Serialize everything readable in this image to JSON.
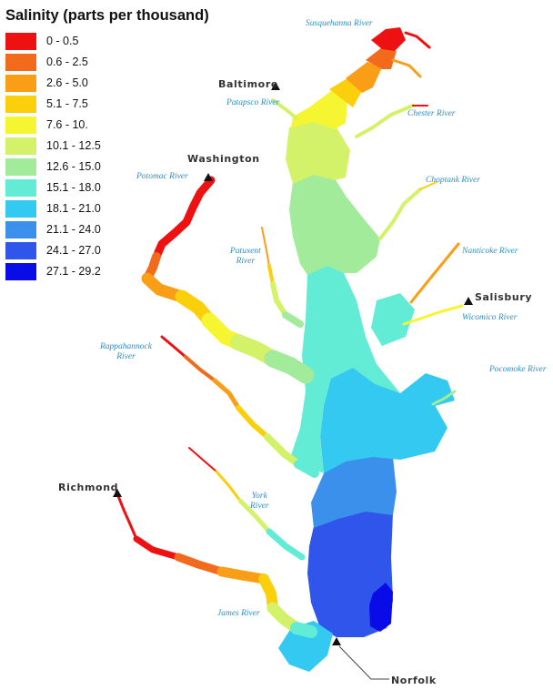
{
  "legend": {
    "title": "Salinity (parts per thousand)",
    "classes": [
      {
        "label": "0 - 0.5",
        "color": "#ee1111"
      },
      {
        "label": "0.6 - 2.5",
        "color": "#f26b1d"
      },
      {
        "label": "2.6 - 5.0",
        "color": "#f99e16"
      },
      {
        "label": "5.1 - 7.5",
        "color": "#fbcf0b"
      },
      {
        "label": "7.6 - 10.",
        "color": "#f5f532"
      },
      {
        "label": "10.1 - 12.5",
        "color": "#d3f26a"
      },
      {
        "label": "12.6 - 15.0",
        "color": "#a2eb9a"
      },
      {
        "label": "15.1 - 18.0",
        "color": "#62ecd6"
      },
      {
        "label": "18.1 - 21.0",
        "color": "#34c9f1"
      },
      {
        "label": "21.1 - 24.0",
        "color": "#3a90ea"
      },
      {
        "label": "24.1 - 27.0",
        "color": "#2f55eb"
      },
      {
        "label": "27.1 - 29.2",
        "color": "#0a0ce8"
      }
    ]
  },
  "cities": {
    "baltimore": "Baltimore",
    "washington": "Washington",
    "salisbury": "Salisbury",
    "richmond": "Richmond",
    "norfolk": "Norfolk"
  },
  "rivers": {
    "susquehanna": "Susquehanna River",
    "patapsco": "Patapsco River",
    "chester": "Chester River",
    "potomac": "Potomac River",
    "choptank": "Choptank River",
    "patuxent_line1": "Patuxent",
    "patuxent_line2": "River",
    "nanticoke": "Nanticoke River",
    "wicomico": "Wicomico River",
    "rappahannock_line1": "Rappahannock",
    "rappahannock_line2": "River",
    "pocomoke": "Pocomoke River",
    "york_line1": "York",
    "york_line2": "River",
    "james": "James River"
  }
}
